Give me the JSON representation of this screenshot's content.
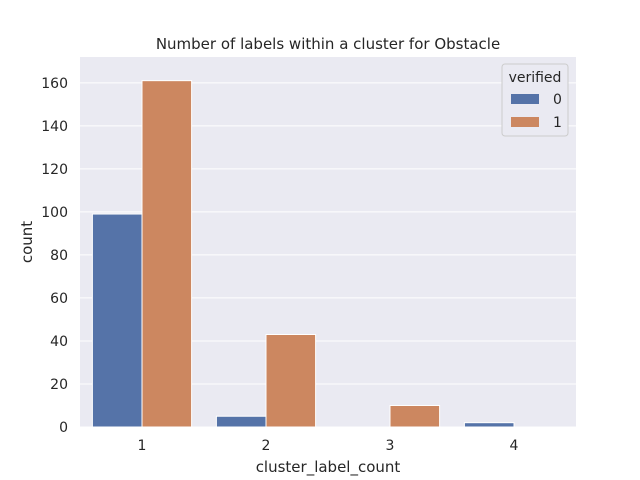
{
  "chart_data": {
    "type": "bar",
    "title": "Number of labels within a cluster for Obstacle",
    "xlabel": "cluster_label_count",
    "ylabel": "count",
    "categories": [
      "1",
      "2",
      "3",
      "4"
    ],
    "ylim": [
      0,
      172
    ],
    "yticks": [
      0,
      20,
      40,
      60,
      80,
      100,
      120,
      140,
      160
    ],
    "grid": true,
    "legend": {
      "title": "verified",
      "position": "top-right"
    },
    "series": [
      {
        "name": "0",
        "color": "#5573a8",
        "values": [
          99,
          5,
          0,
          2
        ]
      },
      {
        "name": "1",
        "color": "#cc8760",
        "values": [
          161,
          43,
          10,
          0
        ]
      }
    ]
  }
}
